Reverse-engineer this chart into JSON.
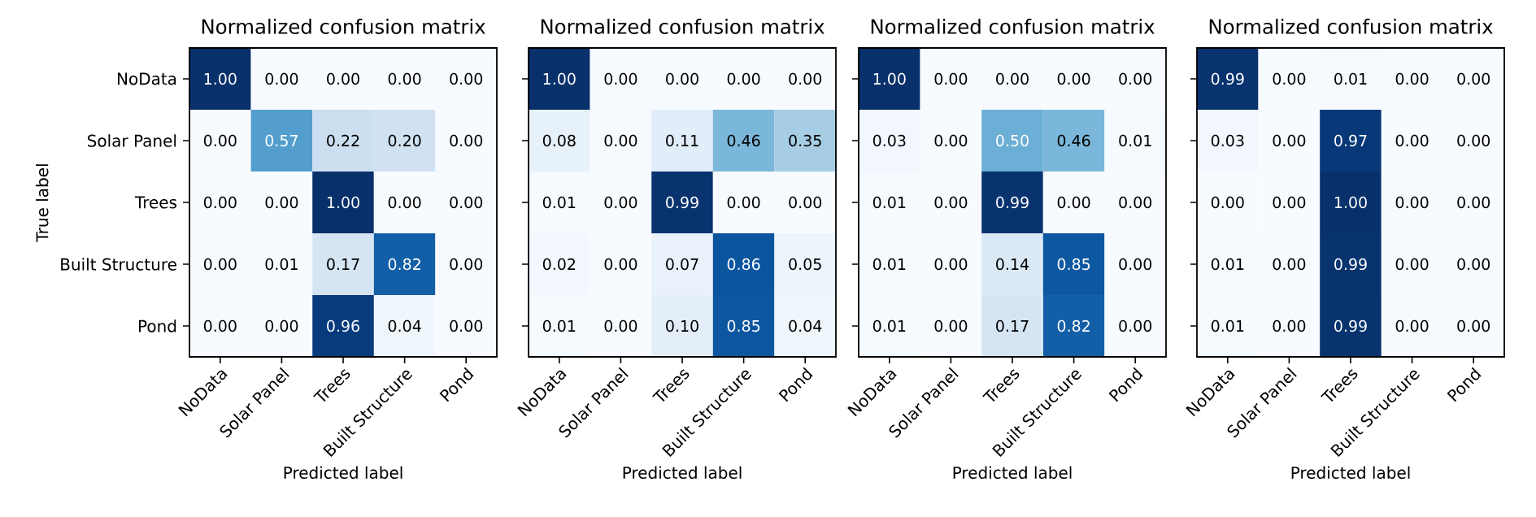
{
  "chart_data": [
    {
      "type": "heatmap",
      "title": "Normalized confusion matrix",
      "xlabel": "Predicted label",
      "ylabel": "True label",
      "categories": [
        "NoData",
        "Solar Panel",
        "Trees",
        "Built Structure",
        "Pond"
      ],
      "y_categories": [
        "NoData",
        "Solar Panel",
        "Trees",
        "Built Structure",
        "Pond"
      ],
      "cells": [
        [
          1.0,
          0.0,
          0.0,
          0.0,
          0.0
        ],
        [
          0.0,
          0.57,
          0.22,
          0.2,
          0.0
        ],
        [
          0.0,
          0.0,
          1.0,
          0.0,
          0.0
        ],
        [
          0.0,
          0.01,
          0.17,
          0.82,
          0.0
        ],
        [
          0.0,
          0.0,
          0.96,
          0.04,
          0.0
        ]
      ],
      "cell_labels": [
        [
          "1.00",
          "0.00",
          "0.00",
          "0.00",
          "0.00"
        ],
        [
          "0.00",
          "0.57",
          "0.22",
          "0.20",
          "0.00"
        ],
        [
          "0.00",
          "0.00",
          "1.00",
          "0.00",
          "0.00"
        ],
        [
          "0.00",
          "0.01",
          "0.17",
          "0.82",
          "0.00"
        ],
        [
          "0.00",
          "0.00",
          "0.96",
          "0.04",
          "0.00"
        ]
      ]
    },
    {
      "type": "heatmap",
      "title": "Normalized confusion matrix",
      "xlabel": "Predicted label",
      "tick_labels": "x",
      "categories": [
        "NoData",
        "Solar Panel",
        "Trees",
        "Built Structure",
        "Pond"
      ],
      "y_categories": [
        null,
        null,
        null,
        null,
        null
      ],
      "cells": [
        [
          1.0,
          0.0,
          0.0,
          0.0,
          0.0
        ],
        [
          0.08,
          0.0,
          0.11,
          0.46,
          0.35
        ],
        [
          0.01,
          0.0,
          0.99,
          0.0,
          0.0
        ],
        [
          0.02,
          0.0,
          0.07,
          0.86,
          0.05
        ],
        [
          0.01,
          0.0,
          0.1,
          0.85,
          0.04
        ]
      ],
      "cell_labels": [
        [
          "1.00",
          "0.00",
          "0.00",
          "0.00",
          "0.00"
        ],
        [
          "0.08",
          "0.00",
          "0.11",
          "0.46",
          "0.35"
        ],
        [
          "0.01",
          "0.00",
          "0.99",
          "0.00",
          "0.00"
        ],
        [
          "0.02",
          "0.00",
          "0.07",
          "0.86",
          "0.05"
        ],
        [
          "0.01",
          "0.00",
          "0.10",
          "0.85",
          "0.04"
        ]
      ]
    },
    {
      "type": "heatmap",
      "title": "Normalized confusion matrix",
      "xlabel": "Predicted label",
      "tick_labels": "x",
      "categories": [
        "NoData",
        "Solar Panel",
        "Trees",
        "Built Structure",
        "Pond"
      ],
      "y_categories": [
        null,
        null,
        null,
        null,
        null
      ],
      "cells": [
        [
          1.0,
          0.0,
          0.0,
          0.0,
          0.0
        ],
        [
          0.03,
          0.0,
          0.5,
          0.46,
          0.01
        ],
        [
          0.01,
          0.0,
          0.99,
          0.0,
          0.0
        ],
        [
          0.01,
          0.0,
          0.14,
          0.85,
          0.0
        ],
        [
          0.01,
          0.0,
          0.17,
          0.82,
          0.0
        ]
      ],
      "cell_labels": [
        [
          "1.00",
          "0.00",
          "0.00",
          "0.00",
          "0.00"
        ],
        [
          "0.03",
          "0.00",
          "0.50",
          "0.46",
          "0.01"
        ],
        [
          "0.01",
          "0.00",
          "0.99",
          "0.00",
          "0.00"
        ],
        [
          "0.01",
          "0.00",
          "0.14",
          "0.85",
          "0.00"
        ],
        [
          "0.01",
          "0.00",
          "0.17",
          "0.82",
          "0.00"
        ]
      ]
    },
    {
      "type": "heatmap",
      "title": "Normalized confusion matrix",
      "xlabel": "Predicted label",
      "tick_labels": "x",
      "categories": [
        "NoData",
        "Solar Panel",
        "Trees",
        "Built Structure",
        "Pond"
      ],
      "y_categories": [
        null,
        null,
        null,
        null,
        null
      ],
      "cells": [
        [
          0.99,
          0.0,
          0.01,
          0.0,
          0.0
        ],
        [
          0.03,
          0.0,
          0.97,
          0.0,
          0.0
        ],
        [
          0.0,
          0.0,
          1.0,
          0.0,
          0.0
        ],
        [
          0.01,
          0.0,
          0.99,
          0.0,
          0.0
        ],
        [
          0.01,
          0.0,
          0.99,
          0.0,
          0.0
        ]
      ],
      "cell_labels": [
        [
          "0.99",
          "0.00",
          "0.01",
          "0.00",
          "0.00"
        ],
        [
          "0.03",
          "0.00",
          "0.97",
          "0.00",
          "0.00"
        ],
        [
          "0.00",
          "0.00",
          "1.00",
          "0.00",
          "0.00"
        ],
        [
          "0.01",
          "0.00",
          "0.99",
          "0.00",
          "0.00"
        ],
        [
          "0.01",
          "0.00",
          "0.99",
          "0.00",
          "0.00"
        ]
      ]
    }
  ]
}
